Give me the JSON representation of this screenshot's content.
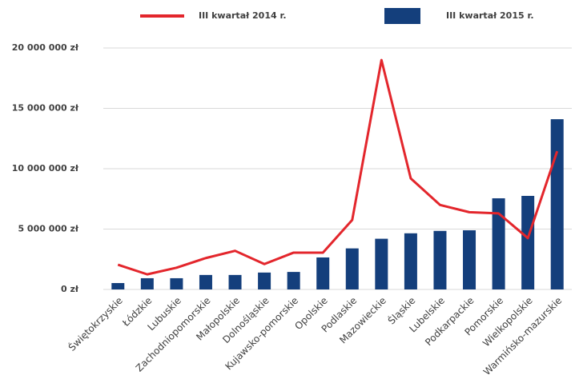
{
  "chart_data": {
    "type": "bar",
    "categories": [
      "Świętokrzyskie",
      "Łódzkie",
      "Lubuskie",
      "Zachodniopomorskie",
      "Małopolskie",
      "Dolnośląskie",
      "Kujawsko-pomorskie",
      "Opolskie",
      "Podlaskie",
      "Mazowieckie",
      "Śląskie",
      "Lubelskie",
      "Podkarpackie",
      "Pomorskie",
      "Wielkopolskie",
      "Warmińsko-mazurskie"
    ],
    "series": [
      {
        "name": "III kwartał 2014 r.",
        "type": "line",
        "color": "#e3262c",
        "values": [
          2050000,
          1250000,
          1800000,
          2600000,
          3200000,
          2100000,
          3050000,
          3050000,
          5750000,
          19000000,
          9200000,
          7000000,
          6400000,
          6300000,
          4250000,
          11450000
        ]
      },
      {
        "name": "III kwartał 2015 r.",
        "type": "bar",
        "color": "#143f7c",
        "values": [
          530000,
          930000,
          930000,
          1200000,
          1200000,
          1400000,
          1450000,
          2650000,
          3400000,
          4200000,
          4650000,
          4850000,
          4900000,
          7550000,
          7750000,
          14100000
        ]
      }
    ],
    "ylim": [
      0,
      20000000
    ],
    "yticks": [
      {
        "value": 0,
        "label": "0 zł"
      },
      {
        "value": 5000000,
        "label": "5 000 000 zł"
      },
      {
        "value": 10000000,
        "label": "10 000 000 zł"
      },
      {
        "value": 15000000,
        "label": "15 000 000 zł"
      },
      {
        "value": 20000000,
        "label": "20 000 000 zł"
      }
    ],
    "grid": true
  }
}
